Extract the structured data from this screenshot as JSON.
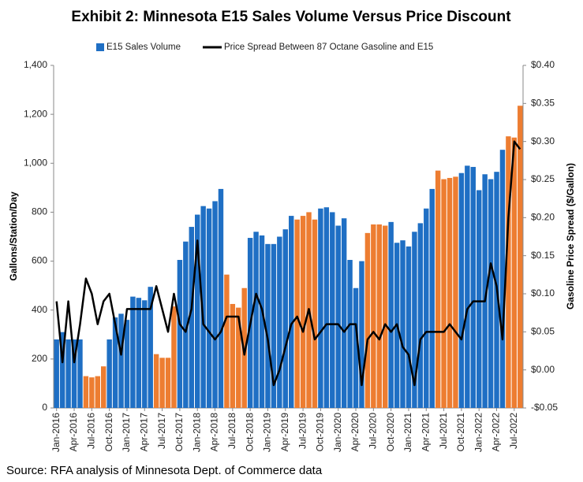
{
  "chart_data": {
    "type": "bar",
    "title": "Exhibit 2: Minnesota E15 Sales Volume Versus Price Discount",
    "source": "Source: RFA analysis of Minnesota Dept. of Commerce data",
    "y_label": "Gallons/Station/Day",
    "y2_label": "Gasoline Price Spread ($/Gallon)",
    "legend": "top",
    "grid": false,
    "categories": [
      "Jan-2016",
      null,
      null,
      "Apr-2016",
      null,
      null,
      "Jul-2016",
      null,
      null,
      "Oct-2016",
      null,
      null,
      "Jan-2017",
      null,
      null,
      "Apr-2017",
      null,
      null,
      "Jul-2017",
      null,
      null,
      "Oct-2017",
      null,
      null,
      "Jan-2018",
      null,
      null,
      "Apr-2018",
      null,
      null,
      "Jul-2018",
      null,
      null,
      "Oct-2018",
      null,
      null,
      "Jan-2019",
      null,
      null,
      "Apr-2019",
      null,
      null,
      "Jul-2019",
      null,
      null,
      "Oct-2019",
      null,
      null,
      "Jan-2020",
      null,
      null,
      "Apr-2020",
      null,
      null,
      "Jul-2020",
      null,
      null,
      "Oct-2020",
      null,
      null,
      "Jan-2021",
      null,
      null,
      "Apr-2021",
      null,
      null,
      "Jul-2021",
      null,
      null,
      "Oct-2021",
      null,
      null,
      "Jan-2022",
      null,
      null,
      "Apr-2022",
      null,
      null,
      "Jul-2022",
      null
    ],
    "ylim": [
      0,
      1400
    ],
    "yticks": [
      0,
      200,
      400,
      600,
      800,
      {
        "value": 1000,
        "label": "1,000"
      },
      {
        "value": 1200,
        "label": "1,200"
      },
      {
        "value": 1400,
        "label": "1,400"
      }
    ],
    "y2lim": [
      -0.05,
      0.4
    ],
    "y2ticks": [
      {
        "value": -0.05,
        "label": "-$0.05"
      },
      {
        "value": 0,
        "label": "$0.00"
      },
      {
        "value": 0.05,
        "label": "$0.05"
      },
      {
        "value": 0.1,
        "label": "$0.10"
      },
      {
        "value": 0.15,
        "label": "$0.15"
      },
      {
        "value": 0.2,
        "label": "$0.20"
      },
      {
        "value": 0.25,
        "label": "$0.25"
      },
      {
        "value": 0.3,
        "label": "$0.30"
      },
      {
        "value": 0.35,
        "label": "$0.35"
      },
      {
        "value": 0.4,
        "label": "$0.40"
      }
    ],
    "series": [
      {
        "name": "E15 Sales Volume",
        "type": "bar",
        "color": "#1f6fc4",
        "colors": [
          "#1f6fc4",
          "#1f6fc4",
          "#1f6fc4",
          "#1f6fc4",
          "#1f6fc4",
          "#ed7d31",
          "#ed7d31",
          "#ed7d31",
          "#ed7d31",
          "#1f6fc4",
          "#1f6fc4",
          "#1f6fc4",
          "#1f6fc4",
          "#1f6fc4",
          "#1f6fc4",
          "#1f6fc4",
          "#1f6fc4",
          "#ed7d31",
          "#ed7d31",
          "#ed7d31",
          "#ed7d31",
          "#1f6fc4",
          "#1f6fc4",
          "#1f6fc4",
          "#1f6fc4",
          "#1f6fc4",
          "#1f6fc4",
          "#1f6fc4",
          "#1f6fc4",
          "#ed7d31",
          "#ed7d31",
          "#ed7d31",
          "#ed7d31",
          "#1f6fc4",
          "#1f6fc4",
          "#1f6fc4",
          "#1f6fc4",
          "#1f6fc4",
          "#1f6fc4",
          "#1f6fc4",
          "#1f6fc4",
          "#ed7d31",
          "#ed7d31",
          "#ed7d31",
          "#ed7d31",
          "#1f6fc4",
          "#1f6fc4",
          "#1f6fc4",
          "#1f6fc4",
          "#1f6fc4",
          "#1f6fc4",
          "#1f6fc4",
          "#1f6fc4",
          "#ed7d31",
          "#ed7d31",
          "#ed7d31",
          "#ed7d31",
          "#1f6fc4",
          "#1f6fc4",
          "#1f6fc4",
          "#1f6fc4",
          "#1f6fc4",
          "#1f6fc4",
          "#1f6fc4",
          "#1f6fc4",
          "#ed7d31",
          "#ed7d31",
          "#ed7d31",
          "#ed7d31",
          "#1f6fc4",
          "#1f6fc4",
          "#1f6fc4",
          "#1f6fc4",
          "#1f6fc4",
          "#1f6fc4",
          "#1f6fc4",
          "#1f6fc4",
          "#ed7d31",
          "#ed7d31",
          "#ed7d31"
        ],
        "values": [
          280,
          310,
          280,
          280,
          280,
          130,
          125,
          130,
          170,
          280,
          370,
          385,
          360,
          455,
          450,
          440,
          495,
          220,
          205,
          205,
          415,
          605,
          680,
          740,
          790,
          825,
          815,
          845,
          895,
          545,
          425,
          410,
          490,
          695,
          720,
          705,
          670,
          670,
          700,
          730,
          785,
          770,
          785,
          800,
          770,
          815,
          820,
          800,
          745,
          775,
          605,
          490,
          600,
          715,
          750,
          750,
          745,
          760,
          675,
          685,
          660,
          720,
          755,
          815,
          895,
          970,
          935,
          940,
          945,
          960,
          990,
          985,
          890,
          955,
          935,
          965,
          1055,
          1110,
          1105,
          1235
        ]
      },
      {
        "name": "Price Spread Between 87 Octane Gasoline and E15",
        "type": "line",
        "color": "#000000",
        "axis": "y2",
        "values": [
          0.09,
          0.01,
          0.09,
          0.01,
          0.06,
          0.12,
          0.1,
          0.06,
          0.09,
          0.1,
          0.06,
          0.02,
          0.08,
          0.08,
          0.08,
          0.08,
          0.08,
          0.11,
          0.08,
          0.05,
          0.1,
          0.06,
          0.05,
          0.08,
          0.17,
          0.06,
          0.05,
          0.04,
          0.05,
          0.07,
          0.07,
          0.07,
          0.02,
          0.06,
          0.1,
          0.08,
          0.04,
          -0.02,
          0,
          0.03,
          0.06,
          0.07,
          0.05,
          0.08,
          0.04,
          0.05,
          0.06,
          0.06,
          0.06,
          0.05,
          0.06,
          0.06,
          -0.02,
          0.04,
          0.05,
          0.04,
          0.06,
          0.05,
          0.06,
          0.03,
          0.02,
          -0.02,
          0.04,
          0.05,
          0.05,
          0.05,
          0.05,
          0.06,
          0.05,
          0.04,
          0.08,
          0.09,
          0.09,
          0.09,
          0.14,
          0.11,
          0.04,
          0.2,
          0.3,
          0.29
        ]
      }
    ]
  }
}
